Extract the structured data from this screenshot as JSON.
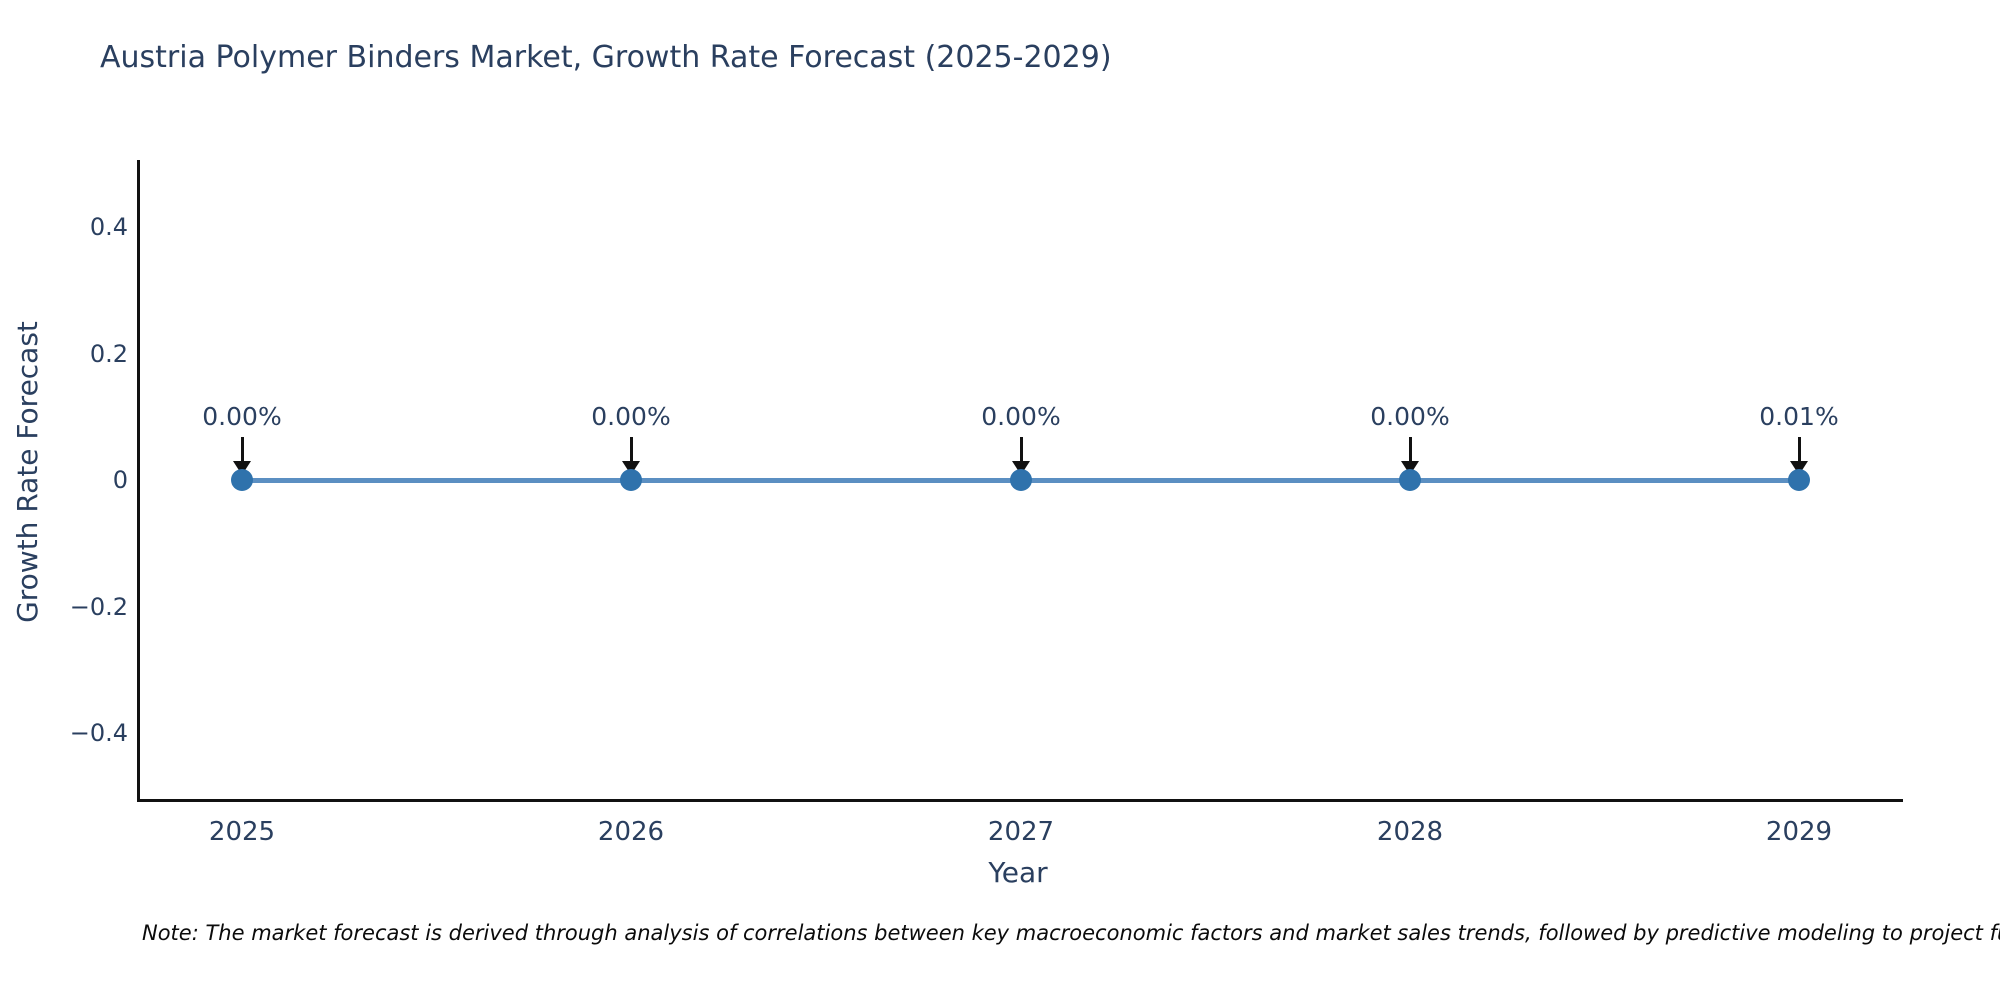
{
  "title": "Austria Polymer Binders Market, Growth Rate Forecast (2025-2029)",
  "note": "Note: The market forecast is derived through analysis of correlations between key macroeconomic factors and market sales trends, followed by predictive modeling to project future sales",
  "chart_data": {
    "type": "line",
    "title": "Austria Polymer Binders Market, Growth Rate Forecast (2025-2029)",
    "xlabel": "Year",
    "ylabel": "Growth Rate Forecast",
    "categories": [
      "2025",
      "2026",
      "2027",
      "2028",
      "2029"
    ],
    "series": [
      {
        "name": "Growth Rate Forecast",
        "values_pct": [
          0.0,
          0.0,
          0.0,
          0.0,
          0.01
        ],
        "point_labels": [
          "0.00%",
          "0.00%",
          "0.00%",
          "0.00%",
          "0.01%"
        ]
      }
    ],
    "yticks": [
      {
        "label": "0.4",
        "value": 0.4
      },
      {
        "label": "0.2",
        "value": 0.2
      },
      {
        "label": "0",
        "value": 0.0
      },
      {
        "label": "−0.2",
        "value": -0.2
      },
      {
        "label": "−0.4",
        "value": -0.4
      }
    ],
    "ylim": [
      -0.51,
      0.51
    ],
    "grid": false,
    "legend": "none",
    "annotations_arrow": "down",
    "colors": {
      "line": "#5b8fc2",
      "marker": "#2f72ac",
      "axis": "#111111",
      "text": "#2a3f5f",
      "arrow": "#111111"
    }
  }
}
